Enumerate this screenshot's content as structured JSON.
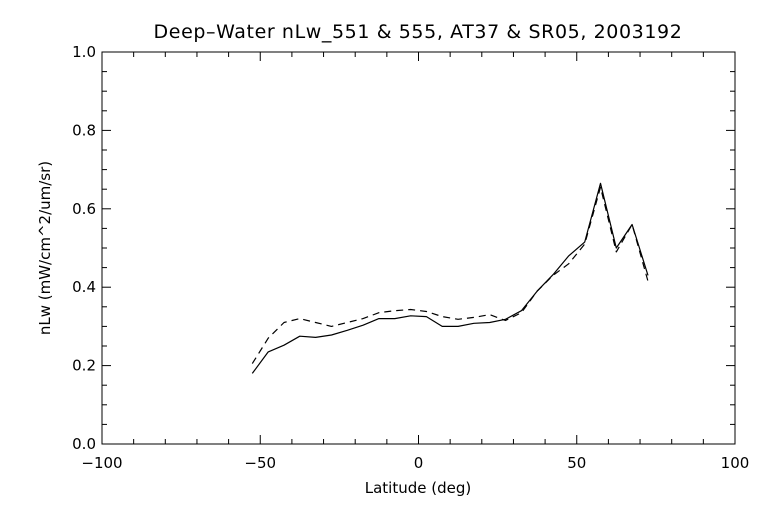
{
  "chart_data": {
    "type": "line",
    "title": "Deep–Water nLw_551 & 555, AT37 & SR05, 2003192",
    "xlabel": "Latitude (deg)",
    "ylabel": "nLw (mW/cm^2/um/sr)",
    "xlim": [
      -100,
      100
    ],
    "ylim": [
      0.0,
      1.0
    ],
    "x_ticks": [
      -100,
      -50,
      0,
      50,
      100
    ],
    "x_tick_labels": [
      "−100",
      "−50",
      "0",
      "50",
      "100"
    ],
    "y_ticks": [
      0.0,
      0.2,
      0.4,
      0.6,
      0.8,
      1.0
    ],
    "y_tick_labels": [
      "0.0",
      "0.2",
      "0.4",
      "0.6",
      "0.8",
      "1.0"
    ],
    "grid": false,
    "series": [
      {
        "style": "solid",
        "x": [
          -52.5,
          -47.5,
          -42.5,
          -37.5,
          -32.5,
          -27.5,
          -22.5,
          -17.5,
          -12.5,
          -7.5,
          -2.5,
          2.5,
          7.5,
          12.5,
          17.5,
          22.5,
          27.5,
          32.5,
          37.5,
          42.5,
          47.5,
          52.5,
          57.5,
          62.5,
          67.5,
          72.5
        ],
        "values": [
          0.18,
          0.235,
          0.252,
          0.275,
          0.272,
          0.278,
          0.29,
          0.303,
          0.32,
          0.32,
          0.327,
          0.325,
          0.3,
          0.3,
          0.308,
          0.31,
          0.318,
          0.34,
          0.39,
          0.432,
          0.48,
          0.515,
          0.665,
          0.5,
          0.56,
          0.43
        ]
      },
      {
        "style": "dashed",
        "x": [
          -52.5,
          -47.5,
          -42.5,
          -37.5,
          -32.5,
          -27.5,
          -22.5,
          -17.5,
          -12.5,
          -7.5,
          -2.5,
          2.5,
          7.5,
          12.5,
          17.5,
          22.5,
          27.5,
          32.5,
          37.5,
          42.5,
          47.5,
          52.5,
          57.5,
          62.5,
          67.5,
          72.5
        ],
        "values": [
          0.205,
          0.27,
          0.31,
          0.32,
          0.31,
          0.3,
          0.31,
          0.32,
          0.335,
          0.34,
          0.343,
          0.338,
          0.325,
          0.318,
          0.323,
          0.33,
          0.315,
          0.335,
          0.39,
          0.43,
          0.46,
          0.51,
          0.655,
          0.49,
          0.56,
          0.415
        ]
      }
    ]
  }
}
